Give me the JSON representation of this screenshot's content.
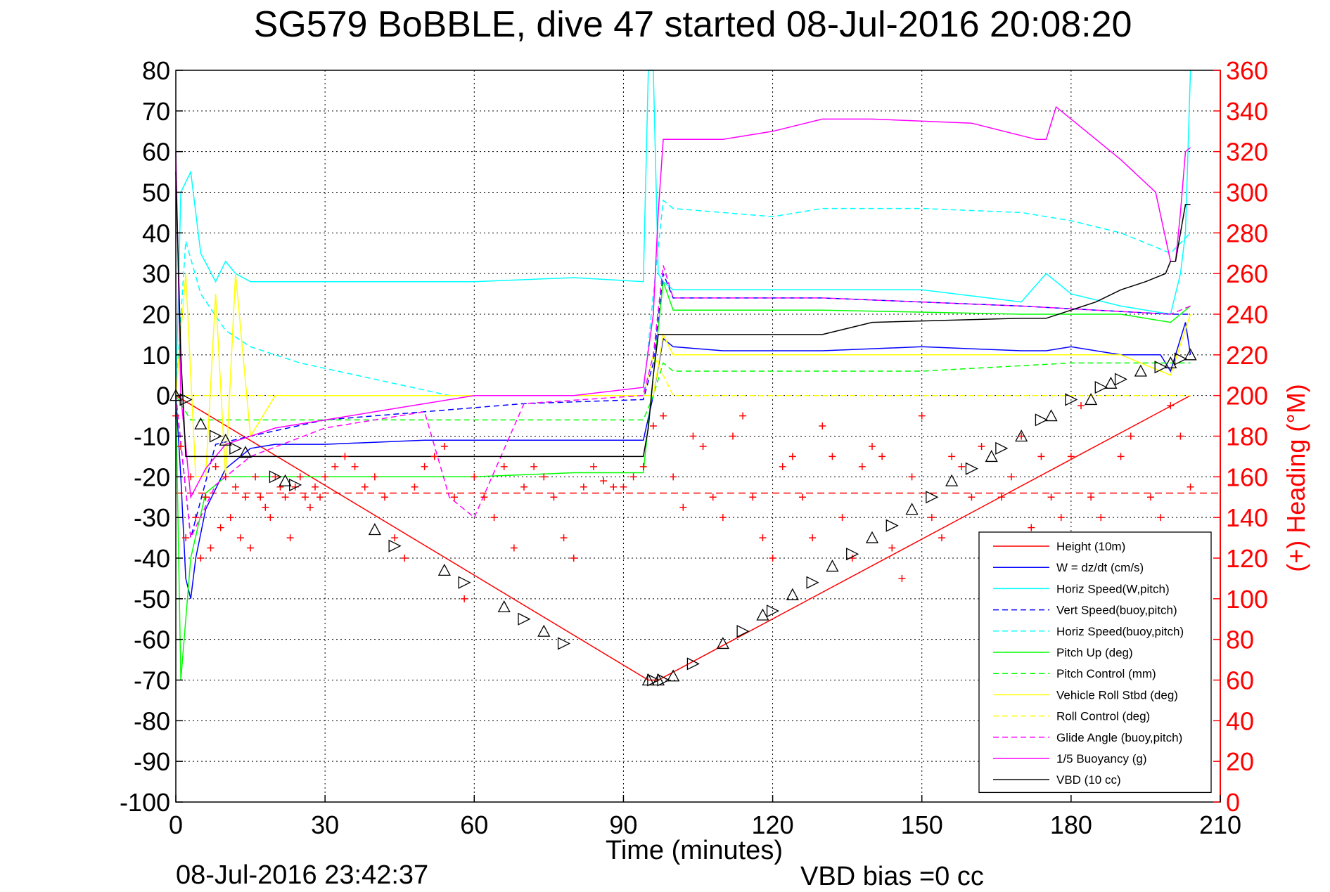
{
  "chart_data": {
    "type": "line",
    "title": "SG579 BoBBLE, dive 47 started 08-Jul-2016 20:08:20",
    "xlabel": "Time (minutes)",
    "ylabel": "",
    "y2label": "(+) Heading (°M)",
    "xlim": [
      0,
      210
    ],
    "ylim": [
      -100,
      80
    ],
    "y2lim": [
      0,
      360
    ],
    "xticks": [
      0,
      30,
      60,
      90,
      120,
      150,
      180,
      210
    ],
    "yticks": [
      -100,
      -90,
      -80,
      -70,
      -60,
      -50,
      -40,
      -30,
      -20,
      -10,
      0,
      10,
      20,
      30,
      40,
      50,
      60,
      70,
      80
    ],
    "y2ticks": [
      0,
      20,
      40,
      60,
      80,
      100,
      120,
      140,
      160,
      180,
      200,
      220,
      240,
      260,
      280,
      300,
      320,
      340,
      360
    ],
    "grid": true,
    "legend_position": "bottom-right",
    "colors": {
      "axis_right": "#ff0000"
    },
    "series": [
      {
        "name": "Height (10m)",
        "color": "#ff0000",
        "dash": "solid",
        "x": [
          0,
          95,
          97,
          204
        ],
        "y": [
          0,
          -70,
          -70,
          0
        ]
      },
      {
        "name": "W = dz/dt (cm/s)",
        "color": "#0000ff",
        "dash": "solid",
        "x": [
          0,
          1,
          2,
          3,
          4,
          6,
          10,
          15,
          20,
          30,
          50,
          70,
          94,
          96,
          98,
          100,
          110,
          130,
          150,
          170,
          175,
          180,
          190,
          198,
          200,
          203,
          204
        ],
        "y": [
          0,
          -20,
          -45,
          -50,
          -40,
          -28,
          -18,
          -13,
          -12,
          -12,
          -11,
          -11,
          -11,
          0,
          14,
          12,
          11,
          11,
          12,
          11,
          11,
          12,
          10,
          10,
          6,
          18,
          10
        ]
      },
      {
        "name": "Horiz Speed(W,pitch)",
        "color": "#00ffff",
        "dash": "solid",
        "x": [
          0,
          1,
          3,
          5,
          8,
          10,
          12,
          15,
          20,
          40,
          60,
          80,
          94,
          95,
          96,
          97,
          98,
          100,
          120,
          150,
          170,
          175,
          180,
          190,
          200,
          202,
          203,
          204
        ],
        "y": [
          0,
          50,
          55,
          35,
          28,
          33,
          30,
          28,
          28,
          28,
          28,
          29,
          28,
          80,
          80,
          30,
          28,
          26,
          26,
          26,
          23,
          30,
          25,
          22,
          20,
          30,
          40,
          80
        ]
      },
      {
        "name": "Vert Speed(buoy,pitch)",
        "color": "#0000ff",
        "dash": "dashed",
        "x": [
          0,
          3,
          8,
          15,
          30,
          50,
          70,
          94,
          96,
          98,
          100,
          130,
          170,
          200,
          204
        ],
        "y": [
          0,
          -35,
          -12,
          -10,
          -6,
          -4,
          -2,
          -1,
          8,
          30,
          24,
          24,
          22,
          20,
          20
        ]
      },
      {
        "name": "Horiz Speed(buoy,pitch)",
        "color": "#00ffff",
        "dash": "dashed",
        "x": [
          0,
          2,
          5,
          10,
          15,
          25,
          40,
          55,
          70,
          94,
          96,
          98,
          100,
          120,
          130,
          150,
          170,
          180,
          190,
          200,
          204
        ],
        "y": [
          0,
          38,
          25,
          16,
          12,
          8,
          4,
          0,
          0,
          0,
          25,
          48,
          46,
          44,
          46,
          46,
          45,
          43,
          40,
          35,
          40
        ]
      },
      {
        "name": "Pitch Up (deg)",
        "color": "#00ff00",
        "dash": "solid",
        "x": [
          0,
          1,
          3,
          6,
          10,
          20,
          40,
          60,
          80,
          94,
          96,
          98,
          100,
          130,
          170,
          190,
          200,
          204
        ],
        "y": [
          0,
          -70,
          -40,
          -24,
          -20,
          -20,
          -20,
          -20,
          -19,
          -19,
          5,
          28,
          21,
          21,
          20,
          20,
          18,
          22
        ]
      },
      {
        "name": "Pitch Control (mm)",
        "color": "#00ff00",
        "dash": "dashed",
        "x": [
          0,
          3,
          6,
          10,
          94,
          96,
          98,
          100,
          150,
          180,
          204
        ],
        "y": [
          0,
          -6,
          -6,
          -6,
          -6,
          0,
          8,
          6,
          6,
          8,
          8
        ]
      },
      {
        "name": "Vehicle Roll Stbd (deg)",
        "color": "#ffff00",
        "dash": "solid",
        "x": [
          0,
          2,
          4,
          6,
          8,
          10,
          12,
          15,
          20,
          40,
          60,
          80,
          94,
          96,
          98,
          100,
          130,
          160,
          190,
          200,
          204
        ],
        "y": [
          0,
          30,
          -20,
          -20,
          25,
          -20,
          30,
          -10,
          0,
          0,
          0,
          0,
          0,
          0,
          15,
          10,
          10,
          10,
          10,
          5,
          20
        ]
      },
      {
        "name": "Roll Control (deg)",
        "color": "#ffff00",
        "dash": "dashed",
        "x": [
          0,
          10,
          94,
          96,
          100,
          204
        ],
        "y": [
          0,
          0,
          0,
          10,
          0,
          0
        ]
      },
      {
        "name": "Glide Angle (buoy,pitch)",
        "color": "#ff00ff",
        "dash": "dashed",
        "x": [
          0,
          3,
          8,
          15,
          30,
          50,
          55,
          60,
          70,
          94,
          96,
          98,
          100,
          130,
          170,
          200,
          204
        ],
        "y": [
          0,
          -35,
          -22,
          -15,
          -8,
          -4,
          -25,
          -30,
          -2,
          0,
          10,
          32,
          24,
          24,
          22,
          20,
          22
        ]
      },
      {
        "name": "1/5 Buoyancy (g)",
        "color": "#ff00ff",
        "dash": "solid",
        "x": [
          0,
          1,
          3,
          6,
          10,
          20,
          40,
          60,
          80,
          94,
          96,
          97,
          98,
          110,
          120,
          130,
          140,
          160,
          173,
          175,
          177,
          180,
          190,
          197,
          200,
          201,
          202,
          203,
          204
        ],
        "y": [
          60,
          0,
          -25,
          -18,
          -12,
          -8,
          -4,
          0,
          0,
          2,
          20,
          45,
          63,
          63,
          65,
          68,
          68,
          67,
          63,
          63,
          71,
          68,
          58,
          50,
          33,
          33,
          45,
          60,
          61
        ]
      },
      {
        "name": "VBD (10 cc)",
        "color": "#000000",
        "dash": "solid",
        "x": [
          0,
          1,
          2,
          94,
          95,
          96,
          97,
          98,
          130,
          140,
          170,
          175,
          180,
          185,
          190,
          195,
          199,
          200,
          201,
          202,
          203,
          204
        ],
        "y": [
          55,
          10,
          -15,
          -15,
          -8,
          5,
          15,
          15,
          15,
          18,
          19,
          19,
          21,
          23,
          26,
          28,
          30,
          33,
          33,
          40,
          47,
          47
        ]
      }
    ],
    "heading_markers": {
      "color": "#ff0000",
      "marker": "+",
      "axis": "right",
      "x": [
        0,
        1,
        2,
        3,
        4,
        5,
        6,
        7,
        8,
        9,
        10,
        11,
        12,
        13,
        14,
        15,
        16,
        17,
        18,
        19,
        20,
        21,
        22,
        23,
        24,
        25,
        26,
        27,
        28,
        29,
        30,
        32,
        34,
        36,
        38,
        40,
        42,
        44,
        46,
        48,
        50,
        52,
        54,
        56,
        58,
        60,
        62,
        64,
        66,
        68,
        70,
        72,
        74,
        76,
        78,
        80,
        82,
        84,
        86,
        88,
        90,
        92,
        94,
        96,
        98,
        100,
        102,
        104,
        106,
        108,
        110,
        112,
        114,
        116,
        118,
        120,
        122,
        124,
        126,
        128,
        130,
        132,
        134,
        136,
        138,
        140,
        142,
        144,
        146,
        148,
        150,
        152,
        154,
        156,
        158,
        160,
        162,
        164,
        166,
        168,
        170,
        172,
        174,
        176,
        178,
        180,
        182,
        184,
        186,
        188,
        190,
        192,
        194,
        196,
        198,
        200,
        202,
        204
      ],
      "y": [
        190,
        175,
        130,
        160,
        140,
        120,
        150,
        125,
        165,
        135,
        160,
        140,
        155,
        130,
        150,
        125,
        160,
        150,
        145,
        140,
        160,
        155,
        150,
        130,
        155,
        160,
        150,
        145,
        155,
        150,
        160,
        165,
        170,
        165,
        155,
        160,
        150,
        130,
        120,
        155,
        165,
        170,
        175,
        150,
        100,
        160,
        150,
        140,
        165,
        125,
        155,
        165,
        160,
        150,
        130,
        120,
        155,
        165,
        158,
        155,
        155,
        160,
        165,
        185,
        190,
        160,
        145,
        180,
        175,
        150,
        140,
        180,
        190,
        150,
        130,
        120,
        165,
        170,
        150,
        130,
        185,
        170,
        140,
        120,
        165,
        175,
        170,
        125,
        110,
        160,
        190,
        140,
        130,
        170,
        165,
        150,
        175,
        130,
        150,
        160,
        180,
        135,
        170,
        150,
        140,
        170,
        195,
        150,
        140,
        120,
        170,
        180,
        130,
        150,
        140,
        195,
        180,
        155
      ]
    },
    "heading_mean": {
      "color": "#ff0000",
      "dash": "dashed",
      "axis": "right",
      "value": 152
    },
    "depth_markers": {
      "color": "#000000",
      "marker": "triangle",
      "x": [
        0,
        2,
        5,
        8,
        10,
        12,
        14,
        20,
        22,
        24,
        40,
        44,
        54,
        58,
        66,
        70,
        74,
        78,
        95,
        96,
        97,
        98,
        100,
        104,
        110,
        114,
        118,
        120,
        124,
        128,
        132,
        136,
        140,
        144,
        148,
        152,
        156,
        160,
        164,
        166,
        170,
        174,
        176,
        180,
        184,
        186,
        188,
        190,
        194,
        198,
        200,
        202,
        204
      ],
      "y": [
        0,
        -1,
        -7,
        -10,
        -11,
        -13,
        -14,
        -20,
        -21,
        -22,
        -33,
        -37,
        -43,
        -46,
        -52,
        -55,
        -58,
        -61,
        -70,
        -70,
        -70,
        -70,
        -69,
        -66,
        -61,
        -58,
        -54,
        -53,
        -49,
        -46,
        -42,
        -39,
        -35,
        -32,
        -28,
        -25,
        -21,
        -18,
        -15,
        -13,
        -10,
        -6,
        -5,
        -1,
        -1,
        2,
        3,
        4,
        6,
        7,
        8,
        9,
        10
      ]
    }
  },
  "labels": {
    "title": "SG579 BoBBLE, dive 47 started 08-Jul-2016 20:08:20",
    "xlabel": "Time (minutes)",
    "y2label": "(+) Heading (°M)",
    "footer_date": "08-Jul-2016 23:42:37",
    "footer_bias": "VBD bias =0 cc"
  }
}
